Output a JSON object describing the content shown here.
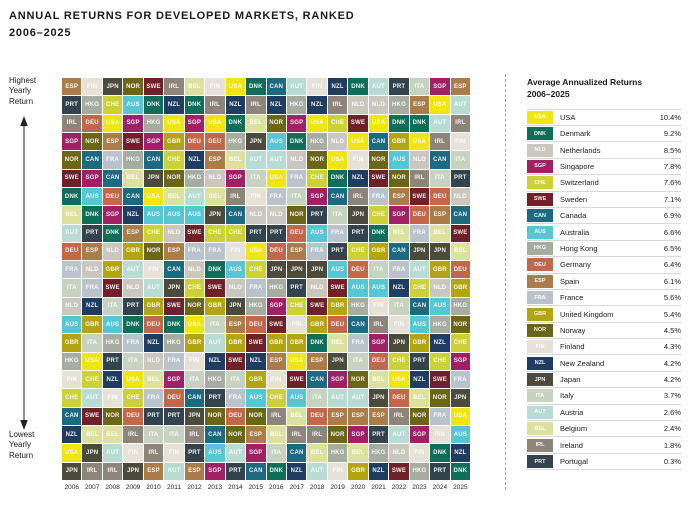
{
  "header": {
    "title": "ANNUAL RETURNS FOR DEVELOPED MARKETS, RANKED",
    "subtitle": "2006–2025"
  },
  "y_axis": {
    "top_label": "Highest\nYearly\nReturn",
    "bottom_label": "Lowest\nYearly\nReturn"
  },
  "legend_panel": {
    "heading_line1": "Average Annualized Returns",
    "heading_line2": "2006–2025"
  },
  "chart_data": {
    "type": "heatmap",
    "title": "ANNUAL RETURNS FOR DEVELOPED MARKETS, RANKED",
    "subtitle": "2006–2025",
    "layout": "quilt ranking chart: each column = one year, cells ordered top (highest yearly return) to bottom (lowest yearly return)",
    "years": [
      "2006",
      "2007",
      "2008",
      "2009",
      "2010",
      "2011",
      "2012",
      "2013",
      "2014",
      "2015",
      "2016",
      "2017",
      "2018",
      "2019",
      "2020",
      "2021",
      "2022",
      "2023",
      "2024",
      "2025"
    ],
    "y_axis": {
      "top_label": "Highest Yearly Return",
      "bottom_label": "Lowest Yearly Return"
    },
    "countries": [
      {
        "code": "USA",
        "name": "USA",
        "avg": "10.4%",
        "color": "#f0e50f"
      },
      {
        "code": "DNK",
        "name": "Denmark",
        "avg": "9.2%",
        "color": "#0f6e5a"
      },
      {
        "code": "NLD",
        "name": "Netherlands",
        "avg": "8.5%",
        "color": "#cac7bf"
      },
      {
        "code": "SGP",
        "name": "Singapore",
        "avg": "7.8%",
        "color": "#a02065"
      },
      {
        "code": "CHE",
        "name": "Switzerland",
        "avg": "7.6%",
        "color": "#ccd236"
      },
      {
        "code": "SWE",
        "name": "Sweden",
        "avg": "7.1%",
        "color": "#702028"
      },
      {
        "code": "CAN",
        "name": "Canada",
        "avg": "6.9%",
        "color": "#1b6a80"
      },
      {
        "code": "AUS",
        "name": "Australia",
        "avg": "6.6%",
        "color": "#54c7d3"
      },
      {
        "code": "HKG",
        "name": "Hong Kong",
        "avg": "6.5%",
        "color": "#a6ac9f"
      },
      {
        "code": "DEU",
        "name": "Germany",
        "avg": "6.4%",
        "color": "#c3674b"
      },
      {
        "code": "ESP",
        "name": "Spain",
        "avg": "6.1%",
        "color": "#aa7c4a"
      },
      {
        "code": "FRA",
        "name": "France",
        "avg": "5.6%",
        "color": "#b9c3cb"
      },
      {
        "code": "GBR",
        "name": "United Kingdom",
        "avg": "5.4%",
        "color": "#b3a512"
      },
      {
        "code": "NOR",
        "name": "Norway",
        "avg": "4.5%",
        "color": "#6b6518"
      },
      {
        "code": "FIN",
        "name": "Finland",
        "avg": "4.3%",
        "color": "#e7e2d7"
      },
      {
        "code": "NZL",
        "name": "New Zealand",
        "avg": "4.2%",
        "color": "#1e3d61"
      },
      {
        "code": "JPN",
        "name": "Japan",
        "avg": "4.2%",
        "color": "#4b4b3d"
      },
      {
        "code": "ITA",
        "name": "Italy",
        "avg": "3.7%",
        "color": "#c6d3c0"
      },
      {
        "code": "AUT",
        "name": "Austria",
        "avg": "2.6%",
        "color": "#b8dcd2"
      },
      {
        "code": "BEL",
        "name": "Belgium",
        "avg": "2.4%",
        "color": "#dce29e"
      },
      {
        "code": "IRL",
        "name": "Ireland",
        "avg": "1.8%",
        "color": "#8e857a"
      },
      {
        "code": "PRT",
        "name": "Portugal",
        "avg": "0.3%",
        "color": "#32434e"
      }
    ],
    "ranking_by_year": {
      "2006": [
        "ESP",
        "PRT",
        "IRL",
        "SGP",
        "NOR",
        "SWE",
        "DNK",
        "BEL",
        "AUT",
        "DEU",
        "FRA",
        "ITA",
        "NLD",
        "AUS",
        "GBR",
        "HKG",
        "FIN",
        "CHE",
        "CAN",
        "NZL",
        "USA",
        "JPN"
      ],
      "2007": [
        "FIN",
        "HKG",
        "DEU",
        "NOR",
        "CAN",
        "SGP",
        "AUS",
        "DNK",
        "PRT",
        "ESP",
        "NLD",
        "FRA",
        "NZL",
        "GBR",
        "ITA",
        "USA",
        "CHE",
        "AUT",
        "SWE",
        "BEL",
        "JPN",
        "IRL"
      ],
      "2008": [
        "JPN",
        "CHE",
        "USA",
        "ESP",
        "FRA",
        "CAN",
        "DEU",
        "SGP",
        "DNK",
        "NLD",
        "GBR",
        "SWE",
        "ITA",
        "AUS",
        "HKG",
        "PRT",
        "NZL",
        "FIN",
        "NOR",
        "BEL",
        "AUT",
        "IRL"
      ],
      "2009": [
        "NOR",
        "AUS",
        "SGP",
        "SWE",
        "HKG",
        "BEL",
        "CAN",
        "NZL",
        "ESP",
        "GBR",
        "AUT",
        "NLD",
        "PRT",
        "DNK",
        "FRA",
        "ITA",
        "USA",
        "CHE",
        "DEU",
        "IRL",
        "FIN",
        "JPN"
      ],
      "2010": [
        "SWE",
        "DNK",
        "HKG",
        "SGP",
        "CAN",
        "JPN",
        "USA",
        "AUS",
        "CHE",
        "NOR",
        "FIN",
        "AUT",
        "GBR",
        "DEU",
        "NZL",
        "NLD",
        "BEL",
        "FRA",
        "PRT",
        "ITA",
        "IRL",
        "ESP"
      ],
      "2011": [
        "IRL",
        "NZL",
        "USA",
        "GBR",
        "CHE",
        "NOR",
        "BEL",
        "AUS",
        "NLD",
        "ESP",
        "CAN",
        "JPN",
        "SWE",
        "DNK",
        "HKG",
        "FRA",
        "SGP",
        "DEU",
        "PRT",
        "ITA",
        "FIN",
        "AUT"
      ],
      "2012": [
        "BEL",
        "DNK",
        "SGP",
        "DEU",
        "NZL",
        "HKG",
        "AUT",
        "AUS",
        "SWE",
        "FRA",
        "NLD",
        "CHE",
        "NOR",
        "USA",
        "GBR",
        "FIN",
        "ITA",
        "CAN",
        "JPN",
        "IRL",
        "PRT",
        "ESP"
      ],
      "2013": [
        "FIN",
        "IRL",
        "USA",
        "DEU",
        "ESP",
        "NLD",
        "BEL",
        "JPN",
        "CHE",
        "FRA",
        "DNK",
        "SWE",
        "GBR",
        "ITA",
        "AUT",
        "NZL",
        "HKG",
        "PRT",
        "NOR",
        "CAN",
        "AUS",
        "SGP"
      ],
      "2014": [
        "USA",
        "NZL",
        "DNK",
        "HKG",
        "BEL",
        "SGP",
        "IRL",
        "CAN",
        "CHE",
        "FIN",
        "AUS",
        "NLD",
        "JPN",
        "ESP",
        "GBR",
        "SWE",
        "ITA",
        "FRA",
        "DEU",
        "NOR",
        "AUT",
        "PRT"
      ],
      "2015": [
        "DNK",
        "IRL",
        "BEL",
        "JPN",
        "AUT",
        "ITA",
        "FIN",
        "NLD",
        "PRT",
        "USA",
        "CHE",
        "FRA",
        "HKG",
        "DEU",
        "SWE",
        "NZL",
        "GBR",
        "AUS",
        "NOR",
        "ESP",
        "SGP",
        "CAN"
      ],
      "2016": [
        "CAN",
        "NZL",
        "NOR",
        "AUS",
        "AUT",
        "USA",
        "FRA",
        "NLD",
        "PRT",
        "DEU",
        "JPN",
        "HKG",
        "SGP",
        "SWE",
        "GBR",
        "ESP",
        "FIN",
        "CHE",
        "IRL",
        "BEL",
        "ITA",
        "DNK"
      ],
      "2017": [
        "AUT",
        "HKG",
        "SGP",
        "DNK",
        "NLD",
        "FRA",
        "ITA",
        "NOR",
        "DEU",
        "ESP",
        "JPN",
        "PRT",
        "CHE",
        "FIN",
        "GBR",
        "USA",
        "SWE",
        "AUS",
        "BEL",
        "IRL",
        "CAN",
        "NZL"
      ],
      "2018": [
        "FIN",
        "NZL",
        "USA",
        "HKG",
        "NOR",
        "CHE",
        "SGP",
        "PRT",
        "AUS",
        "FRA",
        "JPN",
        "NLD",
        "SWE",
        "GBR",
        "DNK",
        "ESP",
        "CAN",
        "ITA",
        "DEU",
        "IRL",
        "BEL",
        "AUT"
      ],
      "2019": [
        "NZL",
        "IRL",
        "CHE",
        "NLD",
        "USA",
        "DNK",
        "CAN",
        "ITA",
        "FRA",
        "PRT",
        "AUS",
        "SWE",
        "GBR",
        "DEU",
        "BEL",
        "JPN",
        "SGP",
        "AUT",
        "ESP",
        "NOR",
        "HKG",
        "FIN"
      ],
      "2020": [
        "DNK",
        "NLD",
        "SWE",
        "USA",
        "FIN",
        "NZL",
        "IRL",
        "JPN",
        "PRT",
        "CHE",
        "DEU",
        "AUS",
        "HKG",
        "CAN",
        "FRA",
        "ITA",
        "NOR",
        "AUT",
        "ESP",
        "SGP",
        "BEL",
        "GBR"
      ],
      "2021": [
        "AUT",
        "NLD",
        "USA",
        "CAN",
        "NOR",
        "SWE",
        "FRA",
        "CHE",
        "DNK",
        "GBR",
        "ITA",
        "AUS",
        "FIN",
        "IRL",
        "SGP",
        "DEU",
        "BEL",
        "JPN",
        "ESP",
        "PRT",
        "HKG",
        "NZL"
      ],
      "2022": [
        "PRT",
        "HKG",
        "DNK",
        "GBR",
        "AUS",
        "NOR",
        "ESP",
        "SGP",
        "BEL",
        "CAN",
        "FRA",
        "NZL",
        "ITA",
        "FIN",
        "JPN",
        "CHE",
        "USA",
        "DEU",
        "IRL",
        "AUT",
        "NLD",
        "SWE"
      ],
      "2023": [
        "ITA",
        "ESP",
        "DNK",
        "USA",
        "NLD",
        "IRL",
        "SWE",
        "DEU",
        "FRA",
        "JPN",
        "AUT",
        "CHE",
        "CAN",
        "AUS",
        "GBR",
        "PRT",
        "NZL",
        "BEL",
        "NOR",
        "SGP",
        "FIN",
        "HKG"
      ],
      "2024": [
        "SGP",
        "USA",
        "AUT",
        "IRL",
        "CAN",
        "ITA",
        "DEU",
        "ESP",
        "BEL",
        "JPN",
        "GBR",
        "NLD",
        "AUS",
        "HKG",
        "NZL",
        "CHE",
        "SWE",
        "NOR",
        "FRA",
        "FIN",
        "DNK",
        "PRT"
      ],
      "2025": [
        "ESP",
        "AUT",
        "IRL",
        "FIN",
        "ITA",
        "PRT",
        "NLD",
        "CAN",
        "SWE",
        "BEL",
        "DEU",
        "GBR",
        "HKG",
        "NOR",
        "CHE",
        "SGP",
        "FRA",
        "JPN",
        "USA",
        "AUS",
        "NZL",
        "DNK"
      ]
    }
  }
}
